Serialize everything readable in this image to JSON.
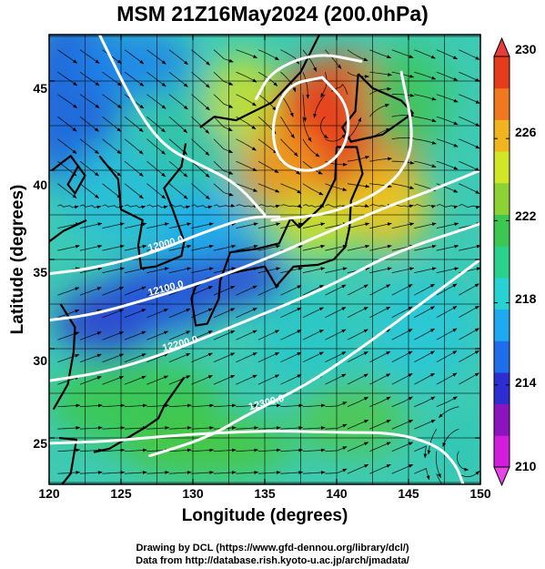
{
  "title": "MSM 21Z16May2024 (200.0hPa)",
  "xlabel": "Longitude (degrees)",
  "ylabel": "Latitude  (degrees)",
  "credits": [
    "Drawing by DCL (https://www.gfd-dennou.org/library/dcl/)",
    "Data from http://database.rish.kyoto-u.ac.jp/arch/jmadata/"
  ],
  "chart_data": {
    "type": "heatmap",
    "description": "Temperature shading with streamlines and white geopotential height contours",
    "x": {
      "label": "Longitude (degrees)",
      "range": [
        120,
        150
      ],
      "ticks": [
        "120",
        "125",
        "130",
        "135",
        "140",
        "145",
        "150"
      ]
    },
    "y": {
      "label": "Latitude  (degrees)",
      "range": [
        22.4,
        47.6
      ],
      "ticks": [
        "25",
        "30",
        "35",
        "40",
        "45"
      ]
    },
    "colorbar": {
      "range": [
        210,
        230
      ],
      "tick_labels": [
        "210",
        "214",
        "218",
        "222",
        "226",
        "230"
      ],
      "colors": [
        "#d21edc",
        "#8c14be",
        "#2d2dd2",
        "#1e6eeb",
        "#1eaaf0",
        "#28d2d2",
        "#28d28c",
        "#3cc850",
        "#8cd232",
        "#d2e628",
        "#f0b41e",
        "#f0781e",
        "#e63c1e"
      ]
    },
    "contour_labels": [
      "12000.0",
      "12100.0",
      "12200.0",
      "12300.0"
    ],
    "contours": [
      {
        "label": "12000.0",
        "points": [
          [
            120,
            34.2
          ],
          [
            123,
            34.5
          ],
          [
            127,
            35.3
          ],
          [
            131,
            36.6
          ],
          [
            134,
            37.4
          ],
          [
            136,
            37.4
          ]
        ]
      },
      {
        "label": "12100.0",
        "points": [
          [
            120,
            31.6
          ],
          [
            123,
            31.9
          ],
          [
            127,
            32.8
          ],
          [
            131,
            33.8
          ],
          [
            135,
            35.0
          ],
          [
            139,
            36.4
          ],
          [
            143,
            37.8
          ],
          [
            147,
            39.0
          ],
          [
            150,
            40.0
          ]
        ]
      },
      {
        "label": "12200.0",
        "points": [
          [
            120,
            28.2
          ],
          [
            124,
            28.7
          ],
          [
            128,
            29.7
          ],
          [
            132,
            31.0
          ],
          [
            136,
            32.3
          ],
          [
            140,
            33.7
          ],
          [
            144,
            35.4
          ],
          [
            150,
            37.0
          ]
        ]
      },
      {
        "label": "12300.0",
        "points": [
          [
            127,
            24.0
          ],
          [
            131,
            25.0
          ],
          [
            134,
            26.4
          ],
          [
            138,
            28.0
          ],
          [
            142,
            30.2
          ],
          [
            146,
            32.6
          ],
          [
            150,
            35.0
          ]
        ]
      },
      {
        "label": "",
        "points": [
          [
            120,
            24.7
          ],
          [
            124,
            24.8
          ],
          [
            128,
            25.1
          ],
          [
            132,
            25.3
          ],
          [
            136,
            25.4
          ],
          [
            140,
            25.3
          ],
          [
            144,
            25.3
          ],
          [
            147,
            24.6
          ],
          [
            148.3,
            23.5
          ],
          [
            148.8,
            22.4
          ]
        ]
      },
      {
        "label": "",
        "points": [
          [
            123.5,
            47.6
          ],
          [
            126,
            43.5
          ],
          [
            128,
            41.3
          ],
          [
            130.5,
            40.3
          ],
          [
            133,
            39.3
          ],
          [
            135,
            37.5
          ]
        ]
      },
      {
        "label": "",
        "points": [
          [
            135.5,
            37.2
          ],
          [
            140,
            37.6
          ],
          [
            144,
            39.2
          ],
          [
            145.5,
            41.5
          ],
          [
            144.5,
            45.5
          ]
        ]
      },
      {
        "label": "",
        "points": [
          [
            139,
            45.2
          ],
          [
            136.5,
            44.8
          ],
          [
            135.4,
            42.5
          ],
          [
            136.0,
            40.3
          ],
          [
            138.5,
            39.8
          ],
          [
            140.7,
            41.2
          ],
          [
            140.9,
            43.6
          ],
          [
            139,
            45.2
          ]
        ]
      },
      {
        "label": "",
        "points": [
          [
            134.4,
            44.0
          ],
          [
            135.5,
            45.6
          ],
          [
            138.6,
            46.6
          ],
          [
            141.7,
            46.1
          ]
        ]
      }
    ]
  }
}
